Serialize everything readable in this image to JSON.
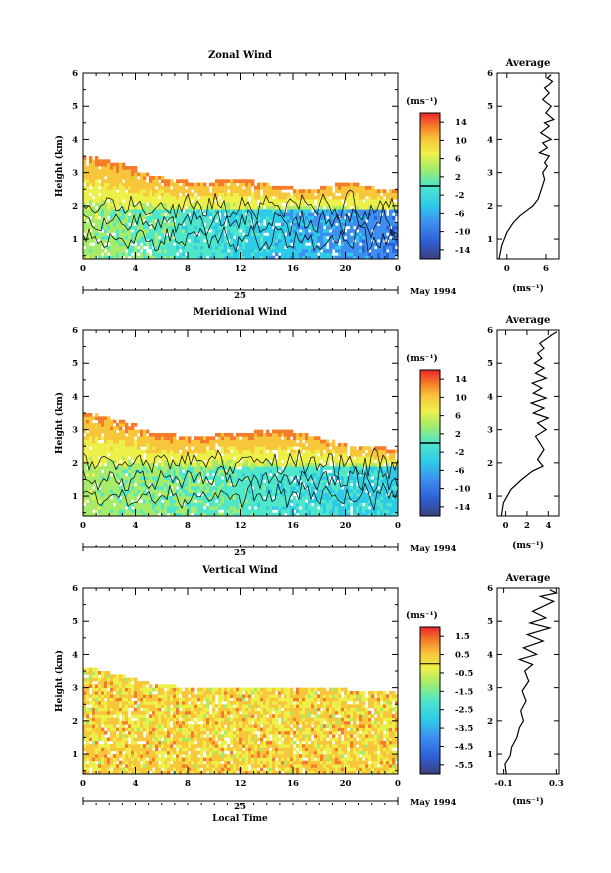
{
  "chart_data": [
    {
      "type": "heatmap",
      "title": "Zonal Wind",
      "ylabel": "Height (km)",
      "xlabel": "",
      "date_label": "25",
      "month_label": "May 1994",
      "xlim": [
        0,
        24
      ],
      "ylim": [
        0.4,
        6
      ],
      "x_ticks": [
        "0",
        "4",
        "8",
        "12",
        "16",
        "20",
        "0"
      ],
      "y_ticks": [
        "1",
        "2",
        "3",
        "4",
        "5",
        "6"
      ],
      "colorbar": {
        "unit": "(ms⁻¹)",
        "range": [
          -16,
          16
        ],
        "ticks": [
          "14",
          "10",
          "6",
          "2",
          "-2",
          "-6",
          "-10",
          "-14"
        ],
        "tick_values": [
          14,
          10,
          6,
          2,
          -2,
          -6,
          -10,
          -14
        ]
      },
      "field_top_km": [
        3.5,
        3.4,
        3.3,
        3.15,
        3.0,
        2.9,
        2.8,
        2.75,
        2.7,
        2.7,
        2.75,
        2.8,
        2.75,
        2.7,
        2.6,
        2.55,
        2.5,
        2.5,
        2.6,
        2.7,
        2.7,
        2.6,
        2.5,
        2.5,
        2.5
      ],
      "profile": {
        "title": "Average",
        "xlabel": "(ms⁻¹)",
        "x_ticks": [
          "0",
          "6"
        ],
        "x_tick_values": [
          0,
          6
        ],
        "xlim": [
          -1.5,
          8
        ],
        "x": [
          -1.2,
          -0.8,
          0.0,
          1.0,
          2.0,
          3.0,
          4.0,
          4.8,
          5.3,
          5.8,
          5.5,
          6.2,
          5.8,
          6.5,
          5.0,
          6.2,
          5.5,
          6.8,
          5.2,
          6.5,
          5.8,
          7.2,
          6.0,
          6.8,
          5.5,
          6.5,
          5.8,
          6.5,
          7.0,
          6.2,
          6.8
        ],
        "y": [
          0.4,
          0.8,
          1.2,
          1.5,
          1.7,
          1.85,
          2.0,
          2.2,
          2.5,
          2.8,
          3.0,
          3.2,
          3.3,
          3.5,
          3.6,
          3.75,
          3.9,
          4.0,
          4.2,
          4.4,
          4.5,
          4.6,
          4.8,
          5.0,
          5.2,
          5.4,
          5.55,
          5.65,
          5.75,
          5.85,
          5.95
        ]
      }
    },
    {
      "type": "heatmap",
      "title": "Meridional Wind",
      "ylabel": "Height (km)",
      "xlabel": "",
      "date_label": "25",
      "month_label": "May 1994",
      "xlim": [
        0,
        24
      ],
      "ylim": [
        0.4,
        6
      ],
      "x_ticks": [
        "0",
        "4",
        "8",
        "12",
        "16",
        "20",
        "0"
      ],
      "y_ticks": [
        "1",
        "2",
        "3",
        "4",
        "5",
        "6"
      ],
      "colorbar": {
        "unit": "(ms⁻¹)",
        "range": [
          -16,
          16
        ],
        "ticks": [
          "14",
          "10",
          "6",
          "2",
          "-2",
          "-6",
          "-10",
          "-14"
        ],
        "tick_values": [
          14,
          10,
          6,
          2,
          -2,
          -6,
          -10,
          -14
        ]
      },
      "field_top_km": [
        3.5,
        3.4,
        3.3,
        3.2,
        3.0,
        2.9,
        2.85,
        2.8,
        2.75,
        2.8,
        2.85,
        2.9,
        2.9,
        2.95,
        3.0,
        2.95,
        2.9,
        2.8,
        2.7,
        2.6,
        2.5,
        2.5,
        2.45,
        2.4,
        2.4
      ],
      "profile": {
        "title": "Average",
        "xlabel": "(ms⁻¹)",
        "x_ticks": [
          "0",
          "2",
          "4"
        ],
        "x_tick_values": [
          0,
          2,
          4
        ],
        "xlim": [
          -0.8,
          5
        ],
        "x": [
          -0.4,
          -0.2,
          0.5,
          1.5,
          2.5,
          3.5,
          3.0,
          3.6,
          3.2,
          2.8,
          3.8,
          3.0,
          4.0,
          2.6,
          3.6,
          2.4,
          3.8,
          2.6,
          3.4,
          2.5,
          3.8,
          2.8,
          3.6,
          2.7,
          3.4,
          3.0,
          3.6,
          3.2,
          3.9,
          4.3,
          4.8
        ],
        "y": [
          0.4,
          0.8,
          1.2,
          1.5,
          1.75,
          1.9,
          2.1,
          2.4,
          2.6,
          2.8,
          3.0,
          3.2,
          3.35,
          3.5,
          3.65,
          3.8,
          3.95,
          4.1,
          4.25,
          4.4,
          4.55,
          4.7,
          4.85,
          5.0,
          5.15,
          5.3,
          5.45,
          5.6,
          5.75,
          5.85,
          5.95
        ]
      }
    },
    {
      "type": "heatmap",
      "title": "Vertical Wind",
      "ylabel": "Height (km)",
      "xlabel": "Local Time",
      "date_label": "25",
      "month_label": "May 1994",
      "xlim": [
        0,
        24
      ],
      "ylim": [
        0.4,
        6
      ],
      "x_ticks": [
        "0",
        "4",
        "8",
        "12",
        "16",
        "20",
        "0"
      ],
      "y_ticks": [
        "1",
        "2",
        "3",
        "4",
        "5",
        "6"
      ],
      "colorbar": {
        "unit": "(ms⁻¹)",
        "range": [
          -6,
          2
        ],
        "ticks": [
          "1.5",
          "0.5",
          "-0.5",
          "-1.5",
          "-2.5",
          "-3.5",
          "-4.5",
          "-5.5"
        ],
        "tick_values": [
          1.5,
          0.5,
          -0.5,
          -1.5,
          -2.5,
          -3.5,
          -4.5,
          -5.5
        ]
      },
      "field_top_km": [
        3.6,
        3.5,
        3.4,
        3.3,
        3.2,
        3.1,
        3.1,
        3.0,
        3.0,
        3.0,
        3.0,
        3.0,
        3.0,
        3.0,
        3.0,
        3.0,
        3.0,
        3.0,
        3.0,
        3.0,
        2.9,
        2.9,
        2.9,
        2.9,
        2.9
      ],
      "profile": {
        "title": "Average",
        "xlabel": "(ms⁻¹)",
        "x_ticks": [
          "-0.1",
          "0.3"
        ],
        "x_tick_values": [
          -0.1,
          0.3
        ],
        "xlim": [
          -0.15,
          0.32
        ],
        "x": [
          -0.08,
          -0.09,
          -0.05,
          -0.04,
          0.0,
          0.02,
          0.05,
          0.03,
          0.07,
          0.04,
          0.09,
          0.06,
          0.12,
          0.02,
          0.15,
          0.05,
          0.2,
          0.08,
          0.25,
          0.1,
          0.22,
          0.12,
          0.2,
          0.28,
          0.18,
          0.3,
          0.25
        ],
        "y": [
          0.4,
          0.7,
          0.95,
          1.2,
          1.5,
          1.8,
          2.0,
          2.3,
          2.6,
          2.9,
          3.2,
          3.5,
          3.7,
          3.85,
          4.0,
          4.2,
          4.4,
          4.6,
          4.8,
          4.95,
          5.1,
          5.3,
          5.45,
          5.6,
          5.75,
          5.85,
          5.95
        ]
      }
    }
  ]
}
